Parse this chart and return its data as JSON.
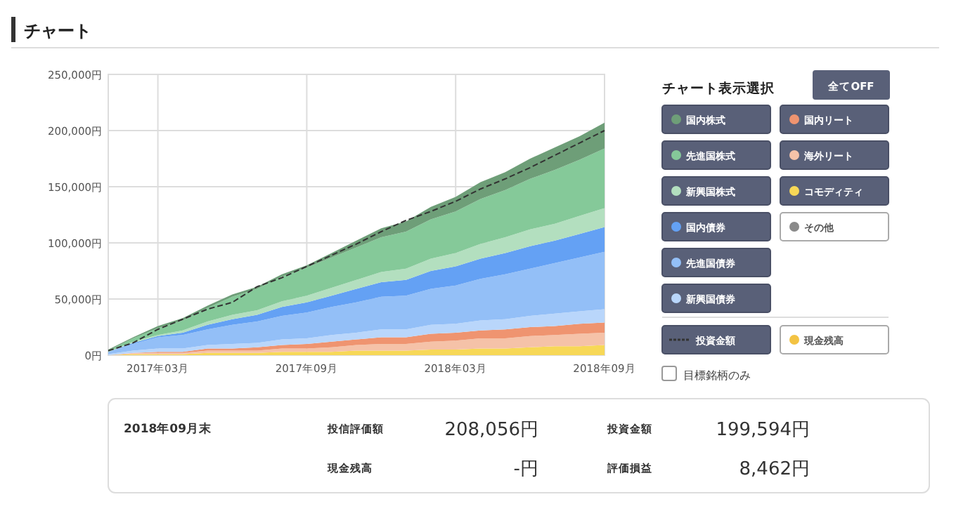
{
  "chart_data": {
    "type": "area",
    "title": "チャート",
    "legend_title": "チャート表示選択",
    "stacked": true,
    "grid": true,
    "legend": "right",
    "x": [
      "2017-01",
      "2017-02",
      "2017-03",
      "2017-04",
      "2017-05",
      "2017-06",
      "2017-07",
      "2017-08",
      "2017-09",
      "2017-10",
      "2017-11",
      "2017-12",
      "2018-01",
      "2018-02",
      "2018-03",
      "2018-04",
      "2018-05",
      "2018-06",
      "2018-07",
      "2018-08",
      "2018-09"
    ],
    "xlim": [
      "2017-01",
      "2018-09"
    ],
    "xticks": [
      {
        "value": "2017-03",
        "label": "2017年03月"
      },
      {
        "value": "2017-09",
        "label": "2017年09月"
      },
      {
        "value": "2018-03",
        "label": "2018年03月"
      },
      {
        "value": "2018-09",
        "label": "2018年09月"
      }
    ],
    "ylim": [
      0,
      250000
    ],
    "yticks": [
      {
        "value": 0,
        "label": "0円"
      },
      {
        "value": 50000,
        "label": "50,000円"
      },
      {
        "value": 100000,
        "label": "100,000円"
      },
      {
        "value": 150000,
        "label": "150,000円"
      },
      {
        "value": 200000,
        "label": "200,000円"
      },
      {
        "value": 250000,
        "label": "250,000円"
      }
    ],
    "series": [
      {
        "name": "コモディティ",
        "color": "#f7d857",
        "values": [
          0,
          1000,
          1000,
          1000,
          2000,
          2000,
          2000,
          3000,
          3000,
          3000,
          4000,
          4000,
          4000,
          5000,
          5000,
          6000,
          6000,
          7000,
          8000,
          8000,
          9000
        ]
      },
      {
        "name": "海外リート",
        "color": "#f5c2a8",
        "values": [
          0,
          1000,
          1000,
          1000,
          2000,
          2000,
          2000,
          3000,
          3000,
          4000,
          5000,
          6000,
          6000,
          7000,
          8000,
          9000,
          9000,
          10000,
          10000,
          11000,
          11000
        ]
      },
      {
        "name": "国内リート",
        "color": "#ef9470",
        "values": [
          0,
          0,
          1000,
          1000,
          2000,
          2000,
          3000,
          3000,
          4000,
          5000,
          5000,
          6000,
          6000,
          7000,
          7000,
          7000,
          8000,
          8000,
          8000,
          9000,
          9000
        ]
      },
      {
        "name": "新興国債券",
        "color": "#b9d6fb",
        "values": [
          1000,
          2000,
          3000,
          3000,
          3000,
          4000,
          4000,
          5000,
          5000,
          6000,
          6000,
          7000,
          7000,
          8000,
          8000,
          9000,
          9000,
          10000,
          11000,
          11000,
          12000
        ]
      },
      {
        "name": "先進国債券",
        "color": "#93bff7",
        "values": [
          2000,
          6000,
          10000,
          12000,
          14000,
          17000,
          19000,
          21000,
          23000,
          25000,
          27000,
          29000,
          30000,
          32000,
          34000,
          37000,
          40000,
          42000,
          45000,
          48000,
          51000
        ]
      },
      {
        "name": "国内債券",
        "color": "#64a1f4",
        "values": [
          0,
          1000,
          1000,
          2000,
          4000,
          5000,
          6000,
          8000,
          9000,
          10000,
          12000,
          13000,
          14000,
          16000,
          17000,
          18000,
          19000,
          20000,
          20000,
          21000,
          22000
        ]
      },
      {
        "name": "新興国株式",
        "color": "#b3dfbf",
        "values": [
          0,
          1000,
          1000,
          2000,
          3000,
          4000,
          4000,
          5000,
          6000,
          7000,
          8000,
          9000,
          10000,
          11000,
          12000,
          13000,
          14000,
          15000,
          15000,
          16000,
          17000
        ]
      },
      {
        "name": "先進国株式",
        "color": "#85c999",
        "values": [
          1000,
          3000,
          6000,
          9000,
          12000,
          16000,
          19000,
          22000,
          25000,
          27000,
          29000,
          31000,
          33000,
          35000,
          37000,
          40000,
          42000,
          45000,
          48000,
          50000,
          53000
        ]
      },
      {
        "name": "国内株式",
        "color": "#6e9e78",
        "values": [
          1000,
          1000,
          2000,
          2000,
          2000,
          2000,
          2000,
          2000,
          2000,
          4000,
          6000,
          8000,
          9000,
          11000,
          13000,
          15000,
          16000,
          18000,
          20000,
          21000,
          23000
        ]
      },
      {
        "name": "その他",
        "color": "#8a8a8a",
        "values": [
          null,
          null,
          null,
          null,
          null,
          null,
          null,
          null,
          null,
          null,
          null,
          null,
          null,
          null,
          null,
          null,
          null,
          null,
          null,
          null,
          null
        ]
      },
      {
        "name": "投資金額",
        "color": "#333333",
        "type": "line",
        "line_style": "dashed",
        "values": [
          4000,
          11000,
          23000,
          32000,
          41000,
          47000,
          61000,
          69000,
          79000,
          89000,
          99000,
          110000,
          120000,
          128000,
          137000,
          148000,
          157000,
          167000,
          178000,
          189000,
          200000
        ]
      },
      {
        "name": "現金残高",
        "color": "#f3c343",
        "values": [
          null,
          null,
          null,
          null,
          null,
          null,
          null,
          null,
          null,
          null,
          null,
          null,
          null,
          null,
          null,
          null,
          null,
          null,
          null,
          null,
          null
        ]
      }
    ],
    "annotations": [
      "全てOFF",
      "目標銘柄のみ",
      "2018年09月末",
      "投信評価額",
      "208,056円",
      "現金残高",
      "-円",
      "投資金額",
      "199,594円",
      "評価損益",
      "8,462円"
    ]
  }
}
